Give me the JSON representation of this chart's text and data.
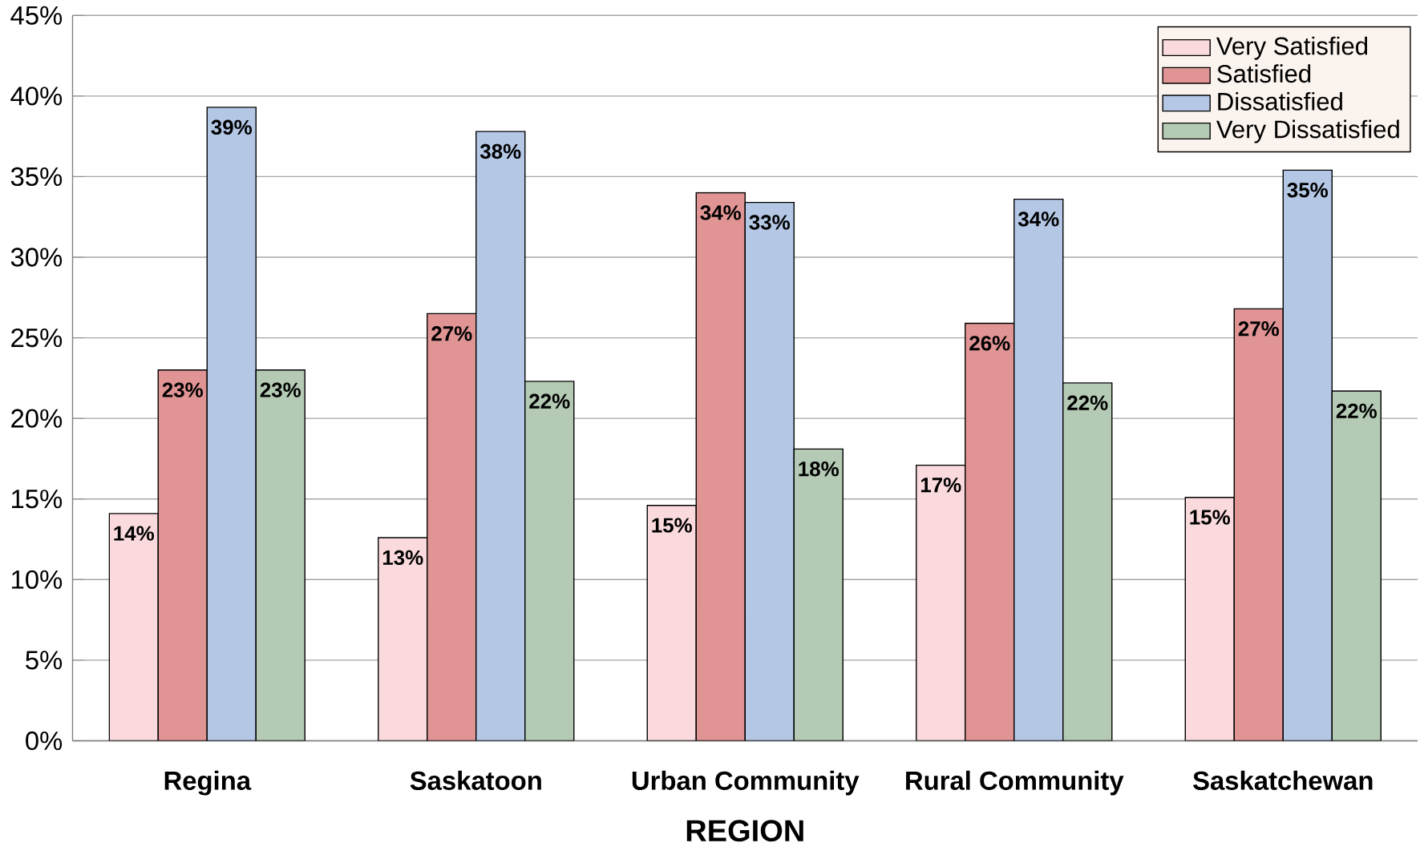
{
  "chart_data": {
    "type": "bar",
    "xlabel": "REGION",
    "categories": [
      "Regina",
      "Saskatoon",
      "Urban Community",
      "Rural Community",
      "Saskatchewan"
    ],
    "series": [
      {
        "name": "Very Satisfied",
        "color": "#fadadd",
        "values": [
          14.1,
          12.6,
          14.6,
          17.1,
          15.1
        ],
        "value_labels": [
          "14%",
          "13%",
          "15%",
          "17%",
          "15%"
        ]
      },
      {
        "name": "Satisfied",
        "color": "#e09494",
        "values": [
          23.0,
          26.5,
          34.0,
          25.9,
          26.8
        ],
        "value_labels": [
          "23%",
          "27%",
          "34%",
          "26%",
          "27%"
        ]
      },
      {
        "name": "Dissatisfied",
        "color": "#b4c8e6",
        "values": [
          39.3,
          37.8,
          33.4,
          33.6,
          35.4
        ],
        "value_labels": [
          "39%",
          "38%",
          "33%",
          "34%",
          "35%"
        ]
      },
      {
        "name": "Very Dissatisfied",
        "color": "#b4cab4",
        "values": [
          23.0,
          22.3,
          18.1,
          22.2,
          21.7
        ],
        "value_labels": [
          "23%",
          "22%",
          "18%",
          "22%",
          "22%"
        ]
      }
    ],
    "ylim": [
      0,
      45
    ],
    "yticks": [
      {
        "value": 0,
        "label": "0%"
      },
      {
        "value": 5,
        "label": "5%"
      },
      {
        "value": 10,
        "label": "10%"
      },
      {
        "value": 15,
        "label": "15%"
      },
      {
        "value": 20,
        "label": "20%"
      },
      {
        "value": 25,
        "label": "25%"
      },
      {
        "value": 30,
        "label": "30%"
      },
      {
        "value": 35,
        "label": "35%"
      },
      {
        "value": 40,
        "label": "40%"
      },
      {
        "value": 45,
        "label": "45%"
      }
    ],
    "grid": "y",
    "legend": "top right"
  }
}
